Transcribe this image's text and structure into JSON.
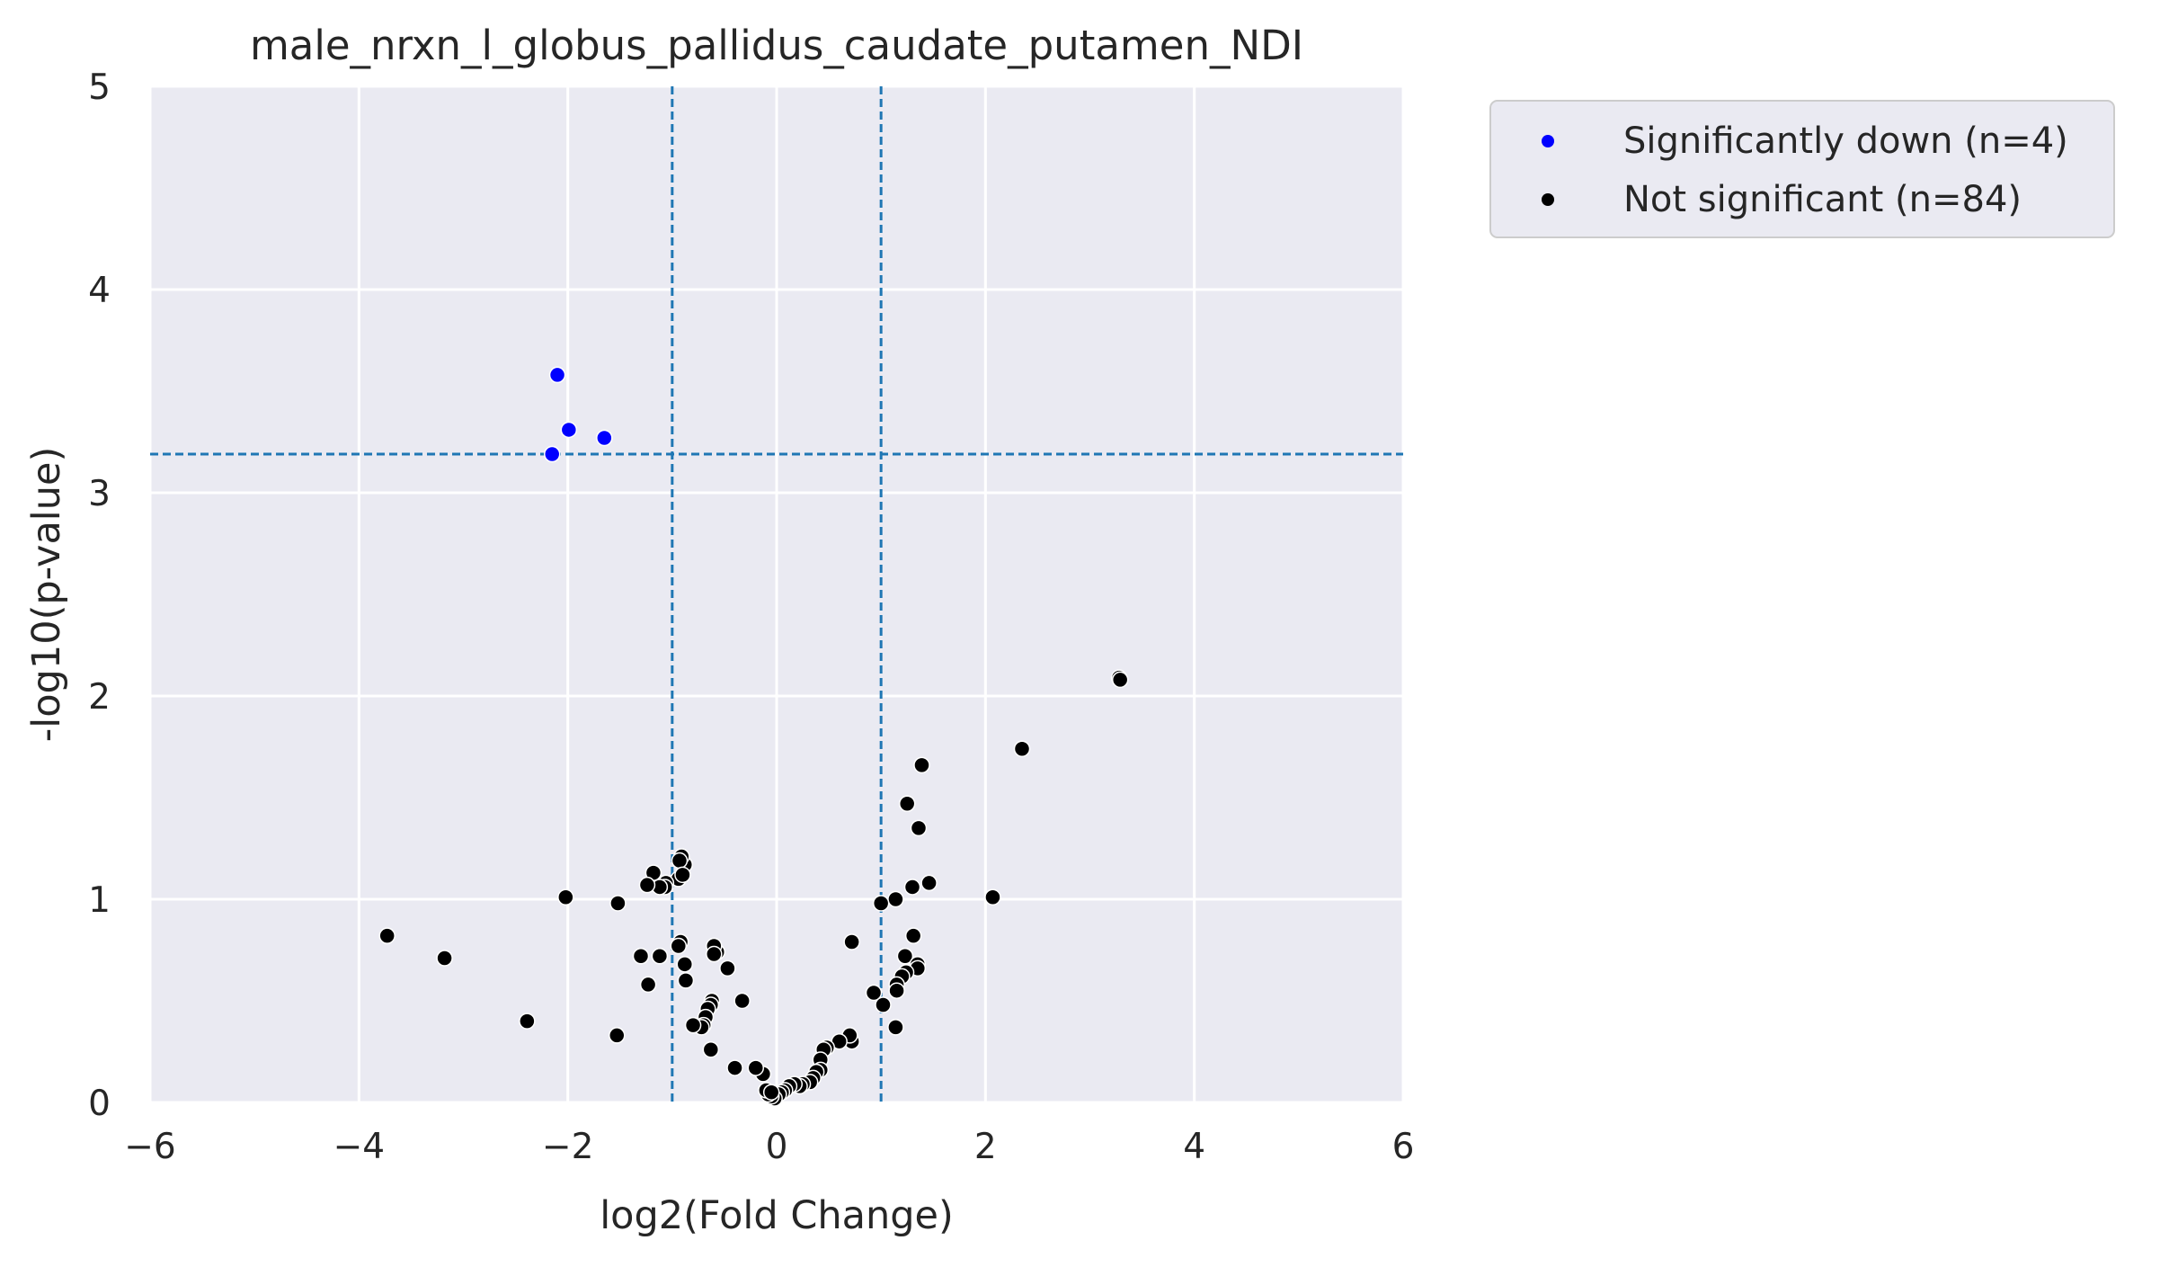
{
  "chart_data": {
    "type": "scatter",
    "title": "male_nrxn_l_globus_pallidus_caudate_putamen_NDI",
    "xlabel": "log2(Fold Change)",
    "ylabel": "-log10(p-value)",
    "xlim": [
      -6,
      6
    ],
    "ylim": [
      0,
      5
    ],
    "xticks": [
      -6,
      -4,
      -2,
      0,
      2,
      4,
      6
    ],
    "xtick_labels": [
      "−6",
      "−4",
      "−2",
      "0",
      "2",
      "4",
      "6"
    ],
    "yticks": [
      0,
      1,
      2,
      3,
      4,
      5
    ],
    "ytick_labels": [
      "0",
      "1",
      "2",
      "3",
      "4",
      "5"
    ],
    "grid": true,
    "background": "#eaeaf2",
    "threshold_lines": {
      "vertical": [
        -1,
        1
      ],
      "horizontal": [
        3.19
      ],
      "color": "#1f77b4",
      "style": "dashed"
    },
    "legend": {
      "placement": "outside-top-right",
      "entries": [
        {
          "label": "Significantly down (n=4)",
          "color": "#0000ff"
        },
        {
          "label": "Not significant (n=84)",
          "color": "#000000"
        }
      ]
    },
    "series": [
      {
        "name": "Significantly down (n=4)",
        "color": "#0000ff",
        "x": [
          -2.1,
          -1.99,
          -1.65,
          -2.15
        ],
        "y": [
          3.58,
          3.31,
          3.27,
          3.19
        ]
      },
      {
        "name": "Not significant (n=84)",
        "color": "#000000",
        "x": [
          3.28,
          3.29,
          2.35,
          1.39,
          1.25,
          1.36,
          1.46,
          1.3,
          1.14,
          2.07,
          1.0,
          0.72,
          1.31,
          1.23,
          1.35,
          1.35,
          1.24,
          1.2,
          1.15,
          1.15,
          1.14,
          0.93,
          1.02,
          0.72,
          0.7,
          0.6,
          0.48,
          0.45,
          0.42,
          0.42,
          0.38,
          0.35,
          0.32,
          0.25,
          0.22,
          0.17,
          0.12,
          0.08,
          0.05,
          0.02,
          -0.02,
          -0.05,
          -0.08,
          -0.1,
          -0.13,
          -0.2,
          -0.33,
          -0.47,
          -0.57,
          -0.6,
          -0.62,
          -0.63,
          -0.66,
          -0.68,
          -0.7,
          -0.72,
          -0.8,
          -0.87,
          -0.88,
          -0.92,
          -0.94,
          -0.88,
          -0.91,
          -0.93,
          -0.94,
          -0.9,
          -1.06,
          -1.07,
          -1.12,
          -1.18,
          -1.24,
          -1.23,
          -1.3,
          -1.12,
          -1.52,
          -1.53,
          -2.02,
          -2.39,
          -3.73,
          -3.18,
          -0.63,
          -0.6,
          -0.4,
          -0.05
        ],
        "y": [
          2.09,
          2.08,
          1.74,
          1.66,
          1.47,
          1.35,
          1.08,
          1.06,
          1.0,
          1.01,
          0.98,
          0.79,
          0.82,
          0.72,
          0.68,
          0.66,
          0.64,
          0.62,
          0.58,
          0.55,
          0.37,
          0.54,
          0.48,
          0.3,
          0.33,
          0.3,
          0.27,
          0.26,
          0.21,
          0.16,
          0.15,
          0.12,
          0.1,
          0.09,
          0.08,
          0.09,
          0.08,
          0.06,
          0.05,
          0.04,
          0.02,
          0.03,
          0.04,
          0.06,
          0.14,
          0.17,
          0.5,
          0.66,
          0.74,
          0.77,
          0.5,
          0.48,
          0.46,
          0.42,
          0.38,
          0.37,
          0.38,
          0.6,
          0.68,
          0.79,
          0.77,
          1.17,
          1.21,
          1.19,
          1.1,
          1.12,
          1.08,
          1.06,
          1.06,
          1.13,
          1.07,
          0.58,
          0.72,
          0.72,
          0.98,
          0.33,
          1.01,
          0.4,
          0.82,
          0.71,
          0.26,
          0.73,
          0.17,
          0.05
        ]
      }
    ]
  }
}
